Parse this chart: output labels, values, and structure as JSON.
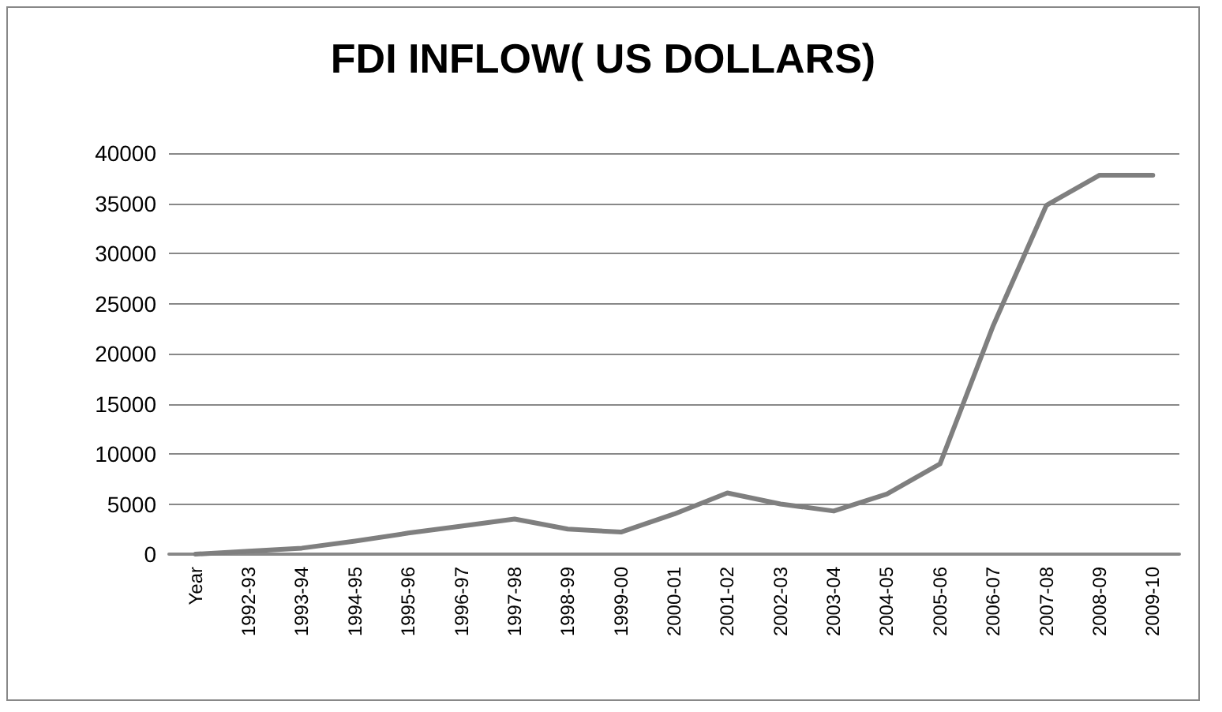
{
  "chart_data": {
    "type": "line",
    "title": "FDI INFLOW( US DOLLARS)",
    "categories": [
      "Year",
      "1992-93",
      "1993-94",
      "1994-95",
      "1995-96",
      "1996-97",
      "1997-98",
      "1998-99",
      "1999-00",
      "2000-01",
      "2001-02",
      "2002-03",
      "2003-04",
      "2004-05",
      "2005-06",
      "2006-07",
      "2007-08",
      "2008-09",
      "2009-10"
    ],
    "series": [
      {
        "color": "#7f7f7f",
        "values": [
          0,
          300,
          600,
          1300,
          2100,
          2800,
          3500,
          2500,
          2200,
          4000,
          6100,
          5000,
          4300,
          6000,
          9000,
          22800,
          34800,
          37800,
          37800
        ]
      }
    ],
    "ylim": [
      0,
      40000
    ],
    "yticks": [
      0,
      5000,
      10000,
      15000,
      20000,
      25000,
      30000,
      35000,
      40000
    ],
    "grid": "y",
    "marker": "none",
    "line_style": "solid"
  }
}
